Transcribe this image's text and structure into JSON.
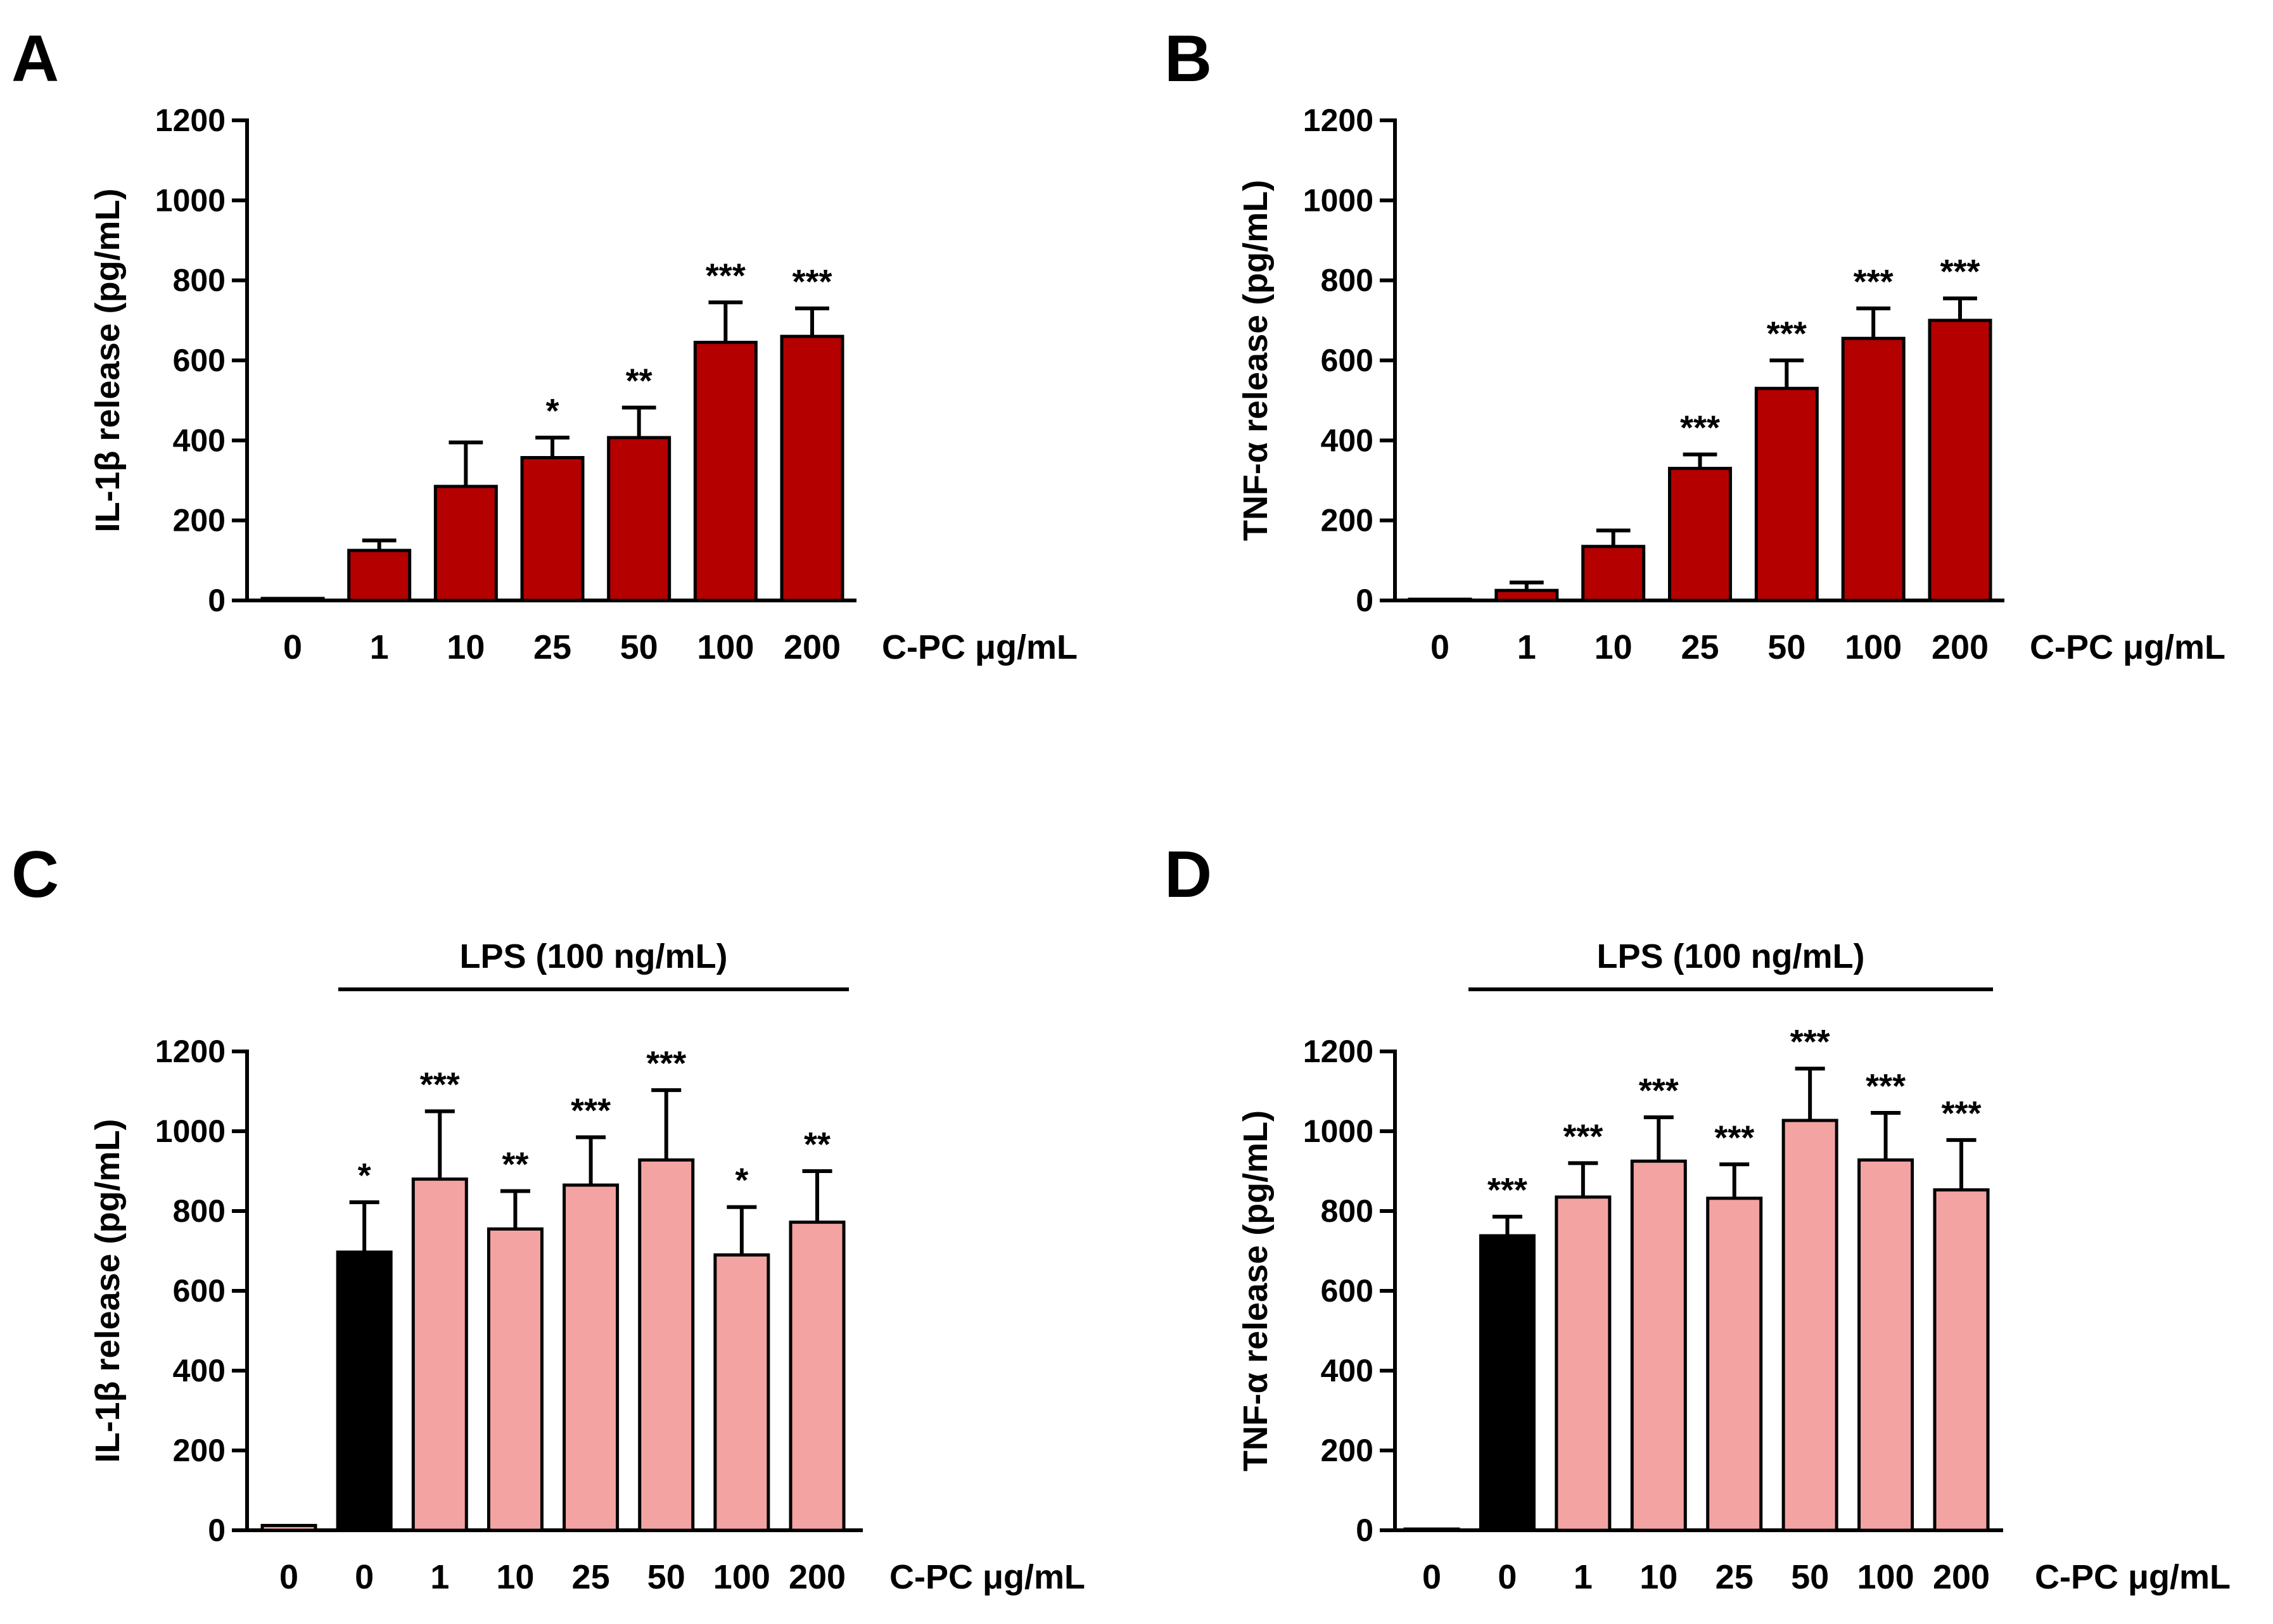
{
  "figure": {
    "x_unit_label": "C-PC μg/mL"
  },
  "chart_data": [
    {
      "panel": "A",
      "type": "bar",
      "ylabel": "IL-1β release (pg/mL)",
      "xlabel": "C-PC μg/mL",
      "ylim": [
        0,
        1200
      ],
      "yticks": [
        0,
        200,
        400,
        600,
        800,
        1000,
        1200
      ],
      "categories": [
        "0",
        "1",
        "10",
        "25",
        "50",
        "100",
        "200"
      ],
      "values": [
        5,
        125,
        285,
        357,
        407,
        645,
        660
      ],
      "errors": [
        0,
        25,
        110,
        50,
        75,
        100,
        70
      ],
      "significance": [
        "",
        "",
        "",
        "*",
        "**",
        "***",
        "***"
      ],
      "bar_colors": [
        "#b50000",
        "#b50000",
        "#b50000",
        "#b50000",
        "#b50000",
        "#b50000",
        "#b50000"
      ],
      "group_label": ""
    },
    {
      "panel": "B",
      "type": "bar",
      "ylabel": "TNF-α release (pg/mL)",
      "xlabel": "C-PC μg/mL",
      "ylim": [
        0,
        1200
      ],
      "yticks": [
        0,
        200,
        400,
        600,
        800,
        1000,
        1200
      ],
      "categories": [
        "0",
        "1",
        "10",
        "25",
        "50",
        "100",
        "200"
      ],
      "values": [
        3,
        25,
        135,
        330,
        530,
        655,
        700
      ],
      "errors": [
        0,
        20,
        40,
        35,
        70,
        75,
        55
      ],
      "significance": [
        "",
        "",
        "",
        "***",
        "***",
        "***",
        "***"
      ],
      "bar_colors": [
        "#b50000",
        "#b50000",
        "#b50000",
        "#b50000",
        "#b50000",
        "#b50000",
        "#b50000"
      ],
      "group_label": ""
    },
    {
      "panel": "C",
      "type": "bar",
      "ylabel": "IL-1β release (pg/mL)",
      "xlabel": "C-PC μg/mL",
      "ylim": [
        0,
        1200
      ],
      "yticks": [
        0,
        200,
        400,
        600,
        800,
        1000,
        1200
      ],
      "categories": [
        "0",
        "0",
        "1",
        "10",
        "25",
        "50",
        "100",
        "200"
      ],
      "values": [
        12,
        697,
        880,
        755,
        865,
        928,
        690,
        772
      ],
      "errors": [
        0,
        125,
        170,
        95,
        120,
        175,
        120,
        128
      ],
      "significance": [
        "",
        "*",
        "***",
        "**",
        "***",
        "***",
        "*",
        "**"
      ],
      "bar_colors": [
        "#f4a3a3",
        "#000000",
        "#f4a3a3",
        "#f4a3a3",
        "#f4a3a3",
        "#f4a3a3",
        "#f4a3a3",
        "#f4a3a3"
      ],
      "group_label": "LPS (100 ng/mL)"
    },
    {
      "panel": "D",
      "type": "bar",
      "ylabel": "TNF-α release (pg/mL)",
      "xlabel": "C-PC μg/mL",
      "ylim": [
        0,
        1200
      ],
      "yticks": [
        0,
        200,
        400,
        600,
        800,
        1000,
        1200
      ],
      "categories": [
        "0",
        "0",
        "1",
        "10",
        "25",
        "50",
        "100",
        "200"
      ],
      "values": [
        3,
        738,
        835,
        925,
        832,
        1027,
        928,
        853
      ],
      "errors": [
        0,
        48,
        85,
        110,
        85,
        130,
        118,
        125
      ],
      "significance": [
        "",
        "***",
        "***",
        "***",
        "***",
        "***",
        "***",
        "***"
      ],
      "bar_colors": [
        "#f4a3a3",
        "#000000",
        "#f4a3a3",
        "#f4a3a3",
        "#f4a3a3",
        "#f4a3a3",
        "#f4a3a3",
        "#f4a3a3"
      ],
      "group_label": "LPS (100 ng/mL)"
    }
  ]
}
